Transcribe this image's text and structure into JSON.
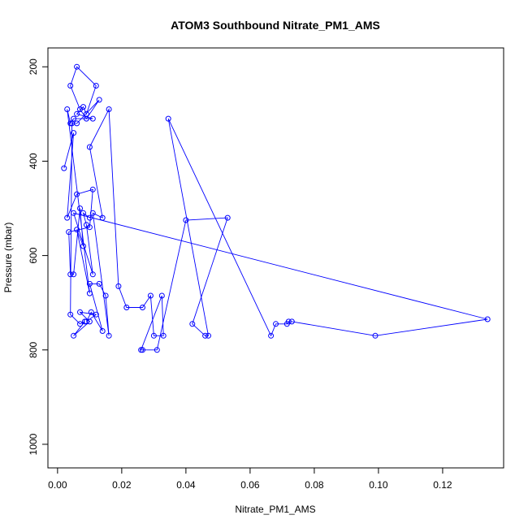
{
  "chart_data": {
    "type": "line",
    "title": "ATOM3 Southbound Nitrate_PM1_AMS",
    "xlabel": "Nitrate_PM1_AMS",
    "ylabel": "Pressure (mbar)",
    "xlim": [
      -0.003,
      0.139
    ],
    "ylim": [
      1050,
      160
    ],
    "y_reversed": true,
    "x_ticks": [
      0.0,
      0.02,
      0.04,
      0.06,
      0.08,
      0.1,
      0.12
    ],
    "x_tick_labels": [
      "0.00",
      "0.02",
      "0.04",
      "0.06",
      "0.08",
      "0.10",
      "0.12"
    ],
    "y_ticks": [
      200,
      400,
      600,
      800,
      1000
    ],
    "y_tick_labels": [
      "200",
      "400",
      "600",
      "800",
      "1000"
    ],
    "grid": false,
    "legend": "none",
    "series": [
      {
        "color": "#0000ff",
        "x": [
          0.002,
          0.005,
          0.003,
          0.006,
          0.011,
          0.01,
          0.0035,
          0.004,
          0.005,
          0.007,
          0.008,
          0.006,
          0.01,
          0.003,
          0.004,
          0.005,
          0.011,
          0.006,
          0.008,
          0.009,
          0.012,
          0.006,
          0.004,
          0.007,
          0.009,
          0.013,
          0.006,
          0.0045,
          0.004,
          0.007,
          0.0085,
          0.005,
          0.01,
          0.007,
          0.012,
          0.009,
          0.0105,
          0.014,
          0.01,
          0.013,
          0.015,
          0.016,
          0.011,
          0.014,
          0.01,
          0.016,
          0.019,
          0.0215,
          0.0265,
          0.029,
          0.03,
          0.033,
          0.0325,
          0.026,
          0.0265,
          0.031,
          0.04,
          0.053,
          0.042,
          0.046,
          0.047,
          0.0345,
          0.0665,
          0.068,
          0.0715,
          0.072,
          0.073,
          0.099,
          0.134,
          0.005,
          0.011,
          0.009,
          0.008,
          0.01
        ],
        "y": [
          415,
          340,
          520,
          470,
          460,
          540,
          550,
          640,
          640,
          500,
          580,
          545,
          680,
          290,
          320,
          310,
          310,
          300,
          285,
          300,
          240,
          200,
          240,
          290,
          310,
          270,
          320,
          320,
          725,
          745,
          740,
          770,
          740,
          720,
          725,
          740,
          720,
          760,
          660,
          660,
          685,
          770,
          510,
          520,
          370,
          290,
          665,
          710,
          710,
          685,
          770,
          770,
          685,
          800,
          800,
          800,
          525,
          520,
          745,
          770,
          770,
          310,
          770,
          745,
          745,
          740,
          740,
          770,
          735,
          510,
          640,
          535,
          510,
          520
        ]
      }
    ]
  }
}
